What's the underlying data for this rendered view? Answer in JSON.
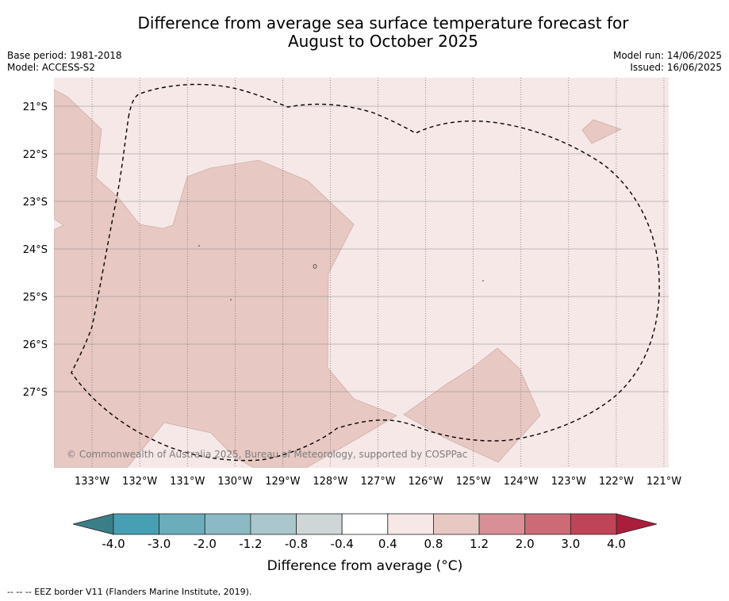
{
  "header": {
    "title_line1": "Difference from average sea surface temperature forecast for",
    "title_line2": "August to October 2025",
    "base_period": "Base period: 1981-2018",
    "model": "Model: ACCESS-S2",
    "model_run": "Model run: 14/06/2025",
    "issued": "Issued: 16/06/2025"
  },
  "map": {
    "lon_range": [
      -133.8,
      -120.9
    ],
    "lat_range": [
      -28.6,
      -20.4
    ],
    "lon_ticks": [
      {
        "value": -133,
        "label": "133°W"
      },
      {
        "value": -132,
        "label": "132°W"
      },
      {
        "value": -131,
        "label": "131°W"
      },
      {
        "value": -130,
        "label": "130°W"
      },
      {
        "value": -129,
        "label": "129°W"
      },
      {
        "value": -128,
        "label": "128°W"
      },
      {
        "value": -127,
        "label": "127°W"
      },
      {
        "value": -126,
        "label": "126°W"
      },
      {
        "value": -125,
        "label": "125°W"
      },
      {
        "value": -124,
        "label": "124°W"
      },
      {
        "value": -123,
        "label": "123°W"
      },
      {
        "value": -122,
        "label": "122°W"
      },
      {
        "value": -121,
        "label": "121°W"
      }
    ],
    "lat_ticks": [
      {
        "value": -21,
        "label": "21°S"
      },
      {
        "value": -22,
        "label": "22°S"
      },
      {
        "value": -23,
        "label": "23°S"
      },
      {
        "value": -24,
        "label": "24°S"
      },
      {
        "value": -25,
        "label": "25°S"
      },
      {
        "value": -26,
        "label": "26°S"
      },
      {
        "value": -27,
        "label": "27°S"
      }
    ],
    "background_anomaly_class": "0.4 to 0.8",
    "warm_region_anomaly_class": "0.8 to 1.2",
    "copyright": "© Commonwealth of Australia 2025, Bureau of Meteorology, supported by COSPPac"
  },
  "colorbar": {
    "labels": [
      "-4.0",
      "-3.0",
      "-2.0",
      "-1.2",
      "-0.8",
      "-0.4",
      "0.4",
      "0.8",
      "1.2",
      "2.0",
      "3.0",
      "4.0"
    ],
    "colors": [
      "#469fb2",
      "#6badbb",
      "#8bb9c4",
      "#a9c7cc",
      "#cfd6d8",
      "#ffffff",
      "#f5e8e6",
      "#e8c8c3",
      "#d88f96",
      "#cc6b76",
      "#bf4457"
    ],
    "under_color": "#3a7f88",
    "over_color": "#a91f3b",
    "unit_label": "Difference from average (°C)"
  },
  "footnote": "-- -- -- EEZ border V11 (Flanders Marine Institute, 2019)."
}
